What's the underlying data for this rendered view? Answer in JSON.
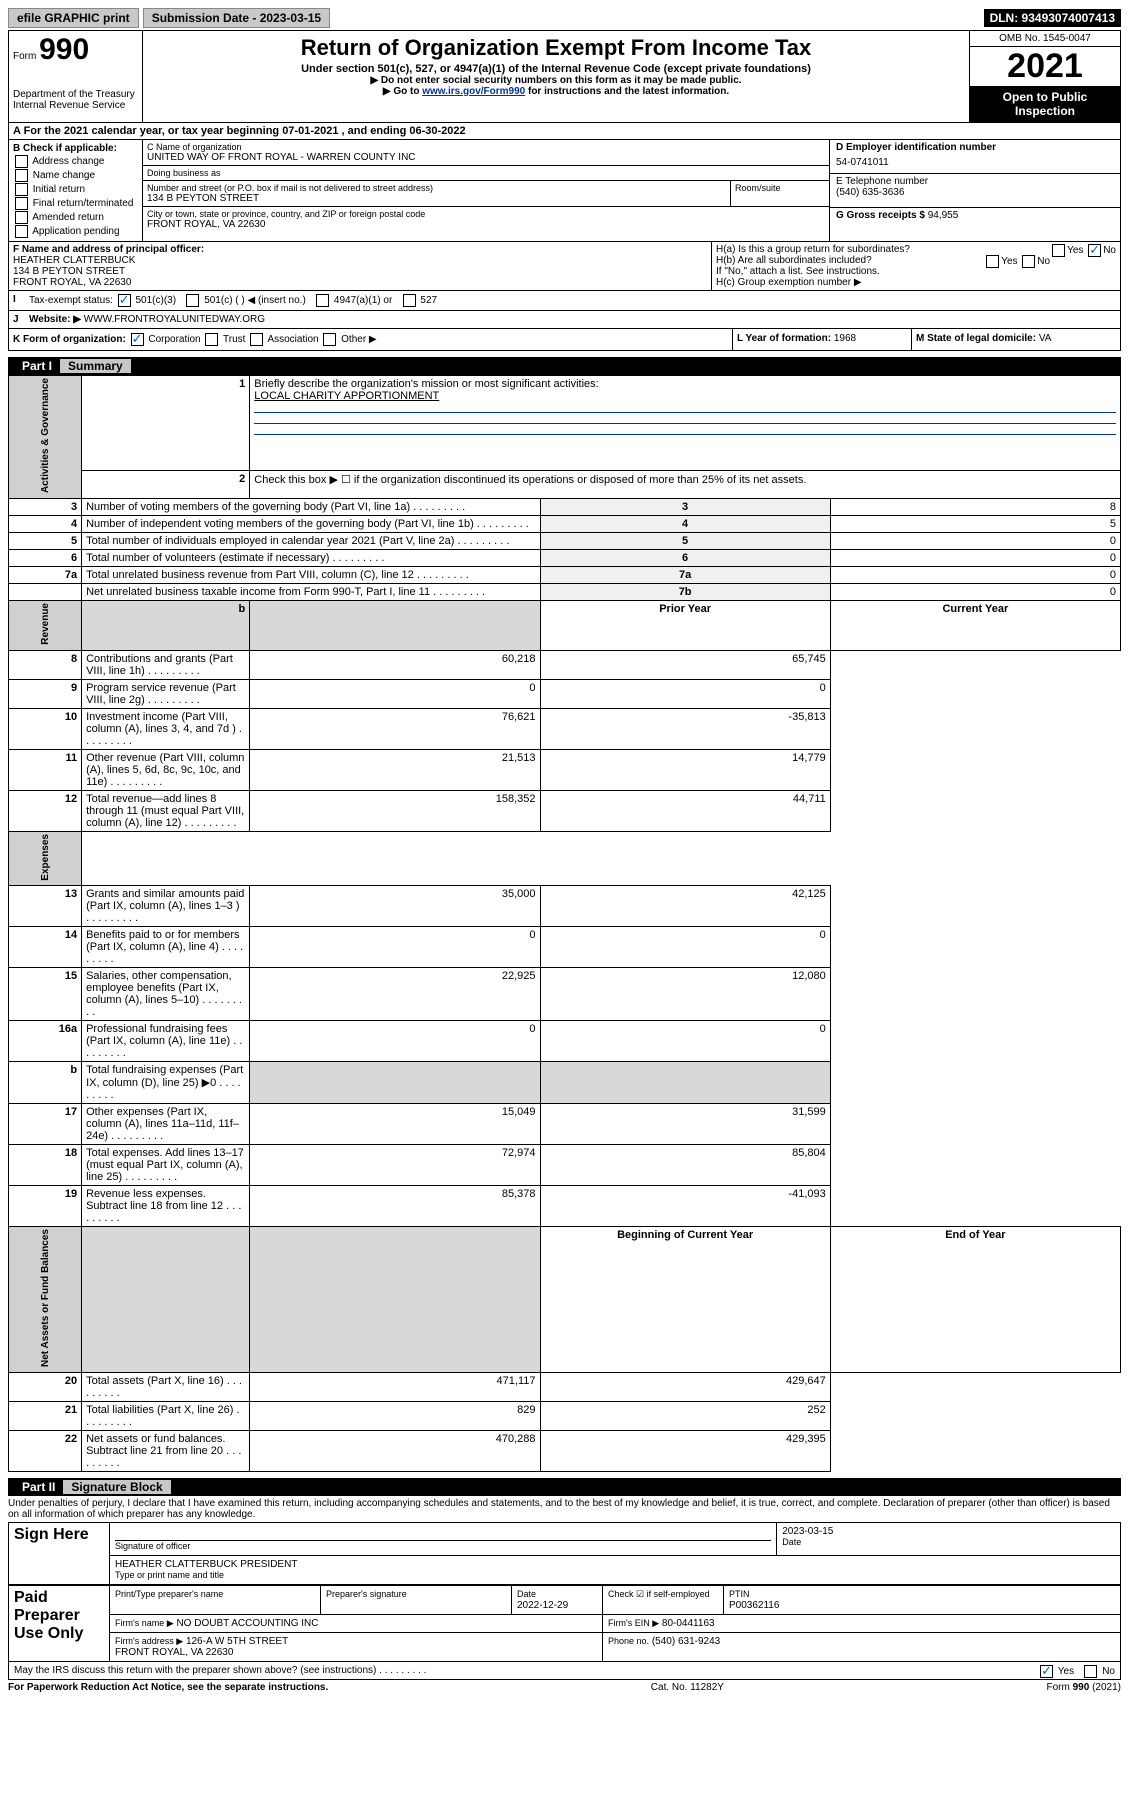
{
  "topbar": {
    "graphic_btn": "efile GRAPHIC print",
    "sub_label": "Submission Date - 2023-03-15",
    "dln": "DLN: 93493074007413"
  },
  "header": {
    "form_word": "Form",
    "form_num": "990",
    "dept": "Department of the Treasury\nInternal Revenue Service",
    "title": "Return of Organization Exempt From Income Tax",
    "sub1": "Under section 501(c), 527, or 4947(a)(1) of the Internal Revenue Code (except private foundations)",
    "sub2a": "▶ Do not enter social security numbers on this form as it may be made public.",
    "sub2b": "▶ Go to www.irs.gov/Form990 for instructions and the latest information.",
    "omb": "OMB No. 1545-0047",
    "year": "2021",
    "open": "Open to Public Inspection"
  },
  "lineA": "A For the 2021 calendar year, or tax year beginning 07-01-2021   , and ending 06-30-2022",
  "colB": {
    "title": "B Check if applicable:",
    "items": [
      "Address change",
      "Name change",
      "Initial return",
      "Final return/terminated",
      "Amended return",
      "Application pending"
    ]
  },
  "colC": {
    "name_lbl": "C Name of organization",
    "name": "UNITED WAY OF FRONT ROYAL - WARREN COUNTY INC",
    "dba_lbl": "Doing business as",
    "dba": "",
    "addr_lbl": "Number and street (or P.O. box if mail is not delivered to street address)",
    "addr": "134 B PEYTON STREET",
    "room_lbl": "Room/suite",
    "room": "",
    "city_lbl": "City or town, state or province, country, and ZIP or foreign postal code",
    "city": "FRONT ROYAL, VA  22630"
  },
  "colDEG": {
    "d_lbl": "D Employer identification number",
    "d_val": "54-0741011",
    "e_lbl": "E Telephone number",
    "e_val": "(540) 635-3636",
    "g_lbl": "G Gross receipts $",
    "g_val": "94,955"
  },
  "f": {
    "f_lbl": "F Name and address of principal officer:",
    "f_name": "HEATHER CLATTERBUCK",
    "f_addr1": "134 B PEYTON STREET",
    "f_addr2": "FRONT ROYAL, VA  22630"
  },
  "h": {
    "ha": "H(a)  Is this a group return for subordinates?",
    "hb": "H(b)  Are all subordinates included?",
    "hb_note": "If \"No,\" attach a list. See instructions.",
    "hc": "H(c)  Group exemption number ▶",
    "yes": "Yes",
    "no": "No"
  },
  "i": {
    "lbl": "Tax-exempt status:",
    "opts": [
      "501(c)(3)",
      "501(c) (  ) ◀ (insert no.)",
      "4947(a)(1) or",
      "527"
    ]
  },
  "j": {
    "lbl": "Website: ▶",
    "val": "WWW.FRONTROYALUNITEDWAY.ORG"
  },
  "k": {
    "lbl": "K Form of organization:",
    "opts": [
      "Corporation",
      "Trust",
      "Association",
      "Other ▶"
    ]
  },
  "l": {
    "lbl": "L Year of formation:",
    "val": "1968"
  },
  "m": {
    "lbl": "M State of legal domicile:",
    "val": "VA"
  },
  "part1": {
    "pt": "Part I",
    "ti": "Summary"
  },
  "summary": {
    "mission_lbl": "Briefly describe the organization's mission or most significant activities:",
    "mission": "LOCAL CHARITY APPORTIONMENT",
    "line2": "Check this box ▶ ☐  if the organization discontinued its operations or disposed of more than 25% of its net assets.",
    "rows_top": [
      {
        "n": "3",
        "t": "Number of voting members of the governing body (Part VI, line 1a)",
        "c": "3",
        "v": "8"
      },
      {
        "n": "4",
        "t": "Number of independent voting members of the governing body (Part VI, line 1b)",
        "c": "4",
        "v": "5"
      },
      {
        "n": "5",
        "t": "Total number of individuals employed in calendar year 2021 (Part V, line 2a)",
        "c": "5",
        "v": "0"
      },
      {
        "n": "6",
        "t": "Total number of volunteers (estimate if necessary)",
        "c": "6",
        "v": "0"
      },
      {
        "n": "7a",
        "t": "Total unrelated business revenue from Part VIII, column (C), line 12",
        "c": "7a",
        "v": "0"
      },
      {
        "n": "",
        "t": "Net unrelated business taxable income from Form 990-T, Part I, line 11",
        "c": "7b",
        "v": "0"
      }
    ],
    "col_headers": {
      "p": "Prior Year",
      "c": "Current Year"
    },
    "rev": [
      {
        "n": "8",
        "t": "Contributions and grants (Part VIII, line 1h)",
        "p": "60,218",
        "c": "65,745"
      },
      {
        "n": "9",
        "t": "Program service revenue (Part VIII, line 2g)",
        "p": "0",
        "c": "0"
      },
      {
        "n": "10",
        "t": "Investment income (Part VIII, column (A), lines 3, 4, and 7d )",
        "p": "76,621",
        "c": "-35,813"
      },
      {
        "n": "11",
        "t": "Other revenue (Part VIII, column (A), lines 5, 6d, 8c, 9c, 10c, and 11e)",
        "p": "21,513",
        "c": "14,779"
      },
      {
        "n": "12",
        "t": "Total revenue—add lines 8 through 11 (must equal Part VIII, column (A), line 12)",
        "p": "158,352",
        "c": "44,711"
      }
    ],
    "exp": [
      {
        "n": "13",
        "t": "Grants and similar amounts paid (Part IX, column (A), lines 1–3 )",
        "p": "35,000",
        "c": "42,125"
      },
      {
        "n": "14",
        "t": "Benefits paid to or for members (Part IX, column (A), line 4)",
        "p": "0",
        "c": "0"
      },
      {
        "n": "15",
        "t": "Salaries, other compensation, employee benefits (Part IX, column (A), lines 5–10)",
        "p": "22,925",
        "c": "12,080"
      },
      {
        "n": "16a",
        "t": "Professional fundraising fees (Part IX, column (A), line 11e)",
        "p": "0",
        "c": "0"
      },
      {
        "n": "b",
        "t": "Total fundraising expenses (Part IX, column (D), line 25) ▶0",
        "p": "",
        "c": "",
        "shade": true
      },
      {
        "n": "17",
        "t": "Other expenses (Part IX, column (A), lines 11a–11d, 11f–24e)",
        "p": "15,049",
        "c": "31,599"
      },
      {
        "n": "18",
        "t": "Total expenses. Add lines 13–17 (must equal Part IX, column (A), line 25)",
        "p": "72,974",
        "c": "85,804"
      },
      {
        "n": "19",
        "t": "Revenue less expenses. Subtract line 18 from line 12",
        "p": "85,378",
        "c": "-41,093"
      }
    ],
    "bal_headers": {
      "p": "Beginning of Current Year",
      "c": "End of Year"
    },
    "bal": [
      {
        "n": "20",
        "t": "Total assets (Part X, line 16)",
        "p": "471,117",
        "c": "429,647"
      },
      {
        "n": "21",
        "t": "Total liabilities (Part X, line 26)",
        "p": "829",
        "c": "252"
      },
      {
        "n": "22",
        "t": "Net assets or fund balances. Subtract line 21 from line 20",
        "p": "470,288",
        "c": "429,395"
      }
    ]
  },
  "part2": {
    "pt": "Part II",
    "ti": "Signature Block"
  },
  "sign": {
    "note": "Under penalties of perjury, I declare that I have examined this return, including accompanying schedules and statements, and to the best of my knowledge and belief, it is true, correct, and complete. Declaration of preparer (other than officer) is based on all information of which preparer has any knowledge.",
    "here": "Sign Here",
    "officer_sig": "Signature of officer",
    "date": "Date",
    "date_val": "2023-03-15",
    "officer_name": "HEATHER CLATTERBUCK  PRESIDENT",
    "officer_name_lbl": "Type or print name and title",
    "paid": "Paid Preparer Use Only",
    "prep_name_lbl": "Print/Type preparer's name",
    "prep_sig_lbl": "Preparer's signature",
    "prep_date": "2022-12-29",
    "self_emp": "Check ☑ if self-employed",
    "ptin_lbl": "PTIN",
    "ptin": "P00362116",
    "firm_lbl": "Firm's name    ▶",
    "firm": "NO DOUBT ACCOUNTING INC",
    "ein_lbl": "Firm's EIN ▶",
    "ein": "80-0441163",
    "firm_addr_lbl": "Firm's address ▶",
    "firm_addr": "126-A W 5TH STREET\nFRONT ROYAL, VA  22630",
    "phone_lbl": "Phone no.",
    "phone": "(540) 631-9243",
    "irs_q": "May the IRS discuss this return with the preparer shown above? (see instructions)"
  },
  "footer": {
    "l": "For Paperwork Reduction Act Notice, see the separate instructions.",
    "c": "Cat. No. 11282Y",
    "r": "Form 990 (2021)"
  }
}
